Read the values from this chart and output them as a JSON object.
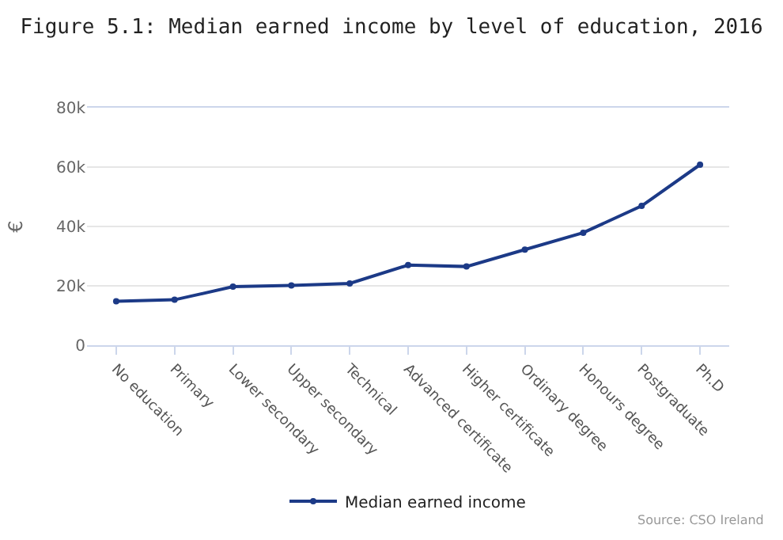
{
  "chart_data": {
    "type": "line",
    "title": "Figure 5.1: Median earned income by level of education, 2016",
    "ylabel": "€",
    "categories": [
      "No education",
      "Primary",
      "Lower secondary",
      "Upper secondary",
      "Technical",
      "Advanced certificate",
      "Higher certificate",
      "Ordinary degree",
      "Honours degree",
      "Postgraduate",
      "Ph.D"
    ],
    "series": [
      {
        "name": "Median earned income",
        "color": "#1c3a87",
        "values": [
          14800,
          15300,
          19700,
          20100,
          20800,
          27000,
          26500,
          32200,
          37900,
          46900,
          60800
        ]
      }
    ],
    "ylim": [
      0,
      80000
    ],
    "yticks": [
      {
        "value": 0,
        "label": "0"
      },
      {
        "value": 20000,
        "label": "20k"
      },
      {
        "value": 40000,
        "label": "40k"
      },
      {
        "value": 60000,
        "label": "60k"
      },
      {
        "value": 80000,
        "label": "80k"
      }
    ],
    "grid": "y",
    "legend": "bottom",
    "marker": "circle",
    "line_style": "solid",
    "annotations": [
      "Source: CSO Ireland"
    ]
  }
}
